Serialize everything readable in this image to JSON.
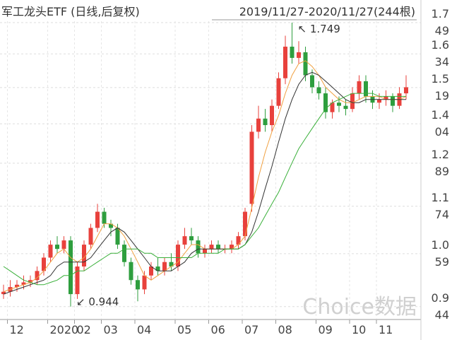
{
  "chart_data": {
    "type": "candlestick",
    "title": "军工龙头ETF (日线,后复权)",
    "subtitle": "2019/11/27-2020/11/27(244根)",
    "watermark": "Choice数据",
    "high_label": "↖ 1.749",
    "low_label": "↙ 0.944",
    "up_color": "#e8413c",
    "down_color": "#2e9e3e",
    "log_scale": true,
    "grid": true,
    "ylim": [
      0.918,
      1.837
    ],
    "yticks": [
      0.944,
      1.059,
      1.174,
      1.289,
      1.404,
      1.519,
      1.634,
      1.749
    ],
    "categories": [
      null,
      "12",
      null,
      null,
      null,
      null,
      null,
      "2020",
      null,
      null,
      null,
      "02",
      null,
      null,
      null,
      "03",
      null,
      null,
      null,
      null,
      "04",
      null,
      null,
      null,
      null,
      null,
      "05",
      null,
      null,
      null,
      null,
      "06",
      null,
      null,
      null,
      null,
      "07",
      null,
      null,
      null,
      null,
      "08",
      null,
      null,
      null,
      null,
      null,
      "09",
      null,
      null,
      null,
      null,
      "10",
      null,
      null,
      null,
      "11",
      null,
      null,
      null,
      null
    ],
    "open": [
      0.97,
      0.975,
      0.985,
      0.99,
      0.995,
      1.0,
      1.02,
      1.05,
      1.08,
      1.07,
      1.09,
      0.97,
      1.03,
      1.08,
      1.12,
      1.16,
      1.13,
      1.12,
      1.08,
      1.04,
      1.0,
      0.98,
      1.01,
      1.03,
      1.02,
      1.04,
      1.03,
      1.08,
      1.1,
      1.09,
      1.06,
      1.07,
      1.08,
      1.07,
      1.07,
      1.08,
      1.1,
      1.18,
      1.38,
      1.42,
      1.4,
      1.46,
      1.55,
      1.66,
      1.62,
      1.64,
      1.56,
      1.52,
      1.5,
      1.44,
      1.47,
      1.46,
      1.45,
      1.5,
      1.54,
      1.49,
      1.47,
      1.48,
      1.49,
      1.46,
      1.5
    ],
    "high": [
      0.99,
      1.0,
      1.0,
      1.01,
      1.01,
      1.03,
      1.06,
      1.09,
      1.1,
      1.1,
      1.1,
      1.04,
      1.09,
      1.13,
      1.18,
      1.17,
      1.14,
      1.13,
      1.09,
      1.05,
      1.01,
      1.02,
      1.04,
      1.05,
      1.05,
      1.06,
      1.09,
      1.12,
      1.12,
      1.1,
      1.08,
      1.09,
      1.09,
      1.08,
      1.09,
      1.11,
      1.17,
      1.4,
      1.46,
      1.45,
      1.48,
      1.57,
      1.7,
      1.749,
      1.68,
      1.66,
      1.58,
      1.54,
      1.52,
      1.48,
      1.49,
      1.48,
      1.52,
      1.56,
      1.56,
      1.51,
      1.5,
      1.51,
      1.5,
      1.52,
      1.56
    ],
    "low": [
      0.96,
      0.965,
      0.975,
      0.98,
      0.985,
      0.99,
      1.01,
      1.04,
      1.06,
      1.06,
      0.944,
      0.96,
      1.02,
      1.07,
      1.11,
      1.12,
      1.1,
      1.07,
      1.03,
      0.99,
      0.955,
      0.97,
      1.0,
      1.01,
      1.01,
      1.02,
      1.02,
      1.07,
      1.08,
      1.05,
      1.05,
      1.06,
      1.06,
      1.06,
      1.06,
      1.07,
      1.09,
      1.16,
      1.36,
      1.38,
      1.38,
      1.45,
      1.53,
      1.6,
      1.6,
      1.54,
      1.5,
      1.48,
      1.42,
      1.42,
      1.44,
      1.43,
      1.44,
      1.48,
      1.47,
      1.45,
      1.45,
      1.46,
      1.44,
      1.45,
      1.48
    ],
    "close": [
      0.975,
      0.985,
      0.99,
      0.995,
      1.0,
      1.02,
      1.05,
      1.08,
      1.07,
      1.09,
      0.97,
      1.03,
      1.08,
      1.12,
      1.16,
      1.13,
      1.12,
      1.08,
      1.04,
      1.0,
      0.98,
      1.01,
      1.03,
      1.02,
      1.04,
      1.03,
      1.08,
      1.1,
      1.09,
      1.06,
      1.07,
      1.08,
      1.07,
      1.07,
      1.08,
      1.1,
      1.16,
      1.38,
      1.42,
      1.4,
      1.46,
      1.55,
      1.66,
      1.62,
      1.64,
      1.56,
      1.52,
      1.5,
      1.44,
      1.47,
      1.46,
      1.45,
      1.5,
      1.54,
      1.49,
      1.47,
      1.48,
      1.49,
      1.46,
      1.5,
      1.52
    ],
    "series": [
      {
        "color": "#f0a040",
        "values": [
          0.975,
          0.98,
          0.985,
          0.99,
          0.995,
          1.005,
          1.02,
          1.04,
          1.06,
          1.07,
          1.05,
          1.04,
          1.05,
          1.07,
          1.1,
          1.13,
          1.13,
          1.12,
          1.1,
          1.07,
          1.04,
          1.01,
          1.0,
          1.01,
          1.02,
          1.03,
          1.04,
          1.06,
          1.08,
          1.08,
          1.07,
          1.07,
          1.07,
          1.07,
          1.07,
          1.08,
          1.1,
          1.17,
          1.25,
          1.32,
          1.38,
          1.43,
          1.5,
          1.56,
          1.6,
          1.61,
          1.59,
          1.56,
          1.52,
          1.5,
          1.48,
          1.47,
          1.47,
          1.48,
          1.49,
          1.49,
          1.49,
          1.48,
          1.48,
          1.48,
          1.49
        ]
      },
      {
        "color": "#333333",
        "values": [
          0.97,
          0.975,
          0.98,
          0.985,
          0.99,
          0.995,
          1.0,
          1.01,
          1.03,
          1.04,
          1.04,
          1.04,
          1.04,
          1.05,
          1.07,
          1.09,
          1.11,
          1.12,
          1.11,
          1.09,
          1.07,
          1.05,
          1.03,
          1.02,
          1.02,
          1.02,
          1.03,
          1.04,
          1.06,
          1.07,
          1.07,
          1.07,
          1.07,
          1.07,
          1.07,
          1.07,
          1.08,
          1.11,
          1.16,
          1.22,
          1.28,
          1.35,
          1.42,
          1.48,
          1.53,
          1.56,
          1.57,
          1.56,
          1.54,
          1.52,
          1.5,
          1.48,
          1.47,
          1.47,
          1.48,
          1.48,
          1.48,
          1.48,
          1.48,
          1.48,
          1.48
        ]
      },
      {
        "color": "#3ab03a",
        "values": [
          1.03,
          1.02,
          1.01,
          1.0,
          0.995,
          0.99,
          0.99,
          0.995,
          1.0,
          1.01,
          1.01,
          1.02,
          1.02,
          1.03,
          1.04,
          1.05,
          1.06,
          1.06,
          1.07,
          1.07,
          1.07,
          1.06,
          1.06,
          1.05,
          1.05,
          1.05,
          1.05,
          1.05,
          1.05,
          1.06,
          1.06,
          1.06,
          1.06,
          1.07,
          1.07,
          1.07,
          1.08,
          1.1,
          1.12,
          1.15,
          1.18,
          1.21,
          1.25,
          1.29,
          1.33,
          1.36,
          1.39,
          1.42,
          1.45,
          1.47,
          1.48,
          1.49,
          1.5,
          1.5,
          1.5,
          1.5,
          1.49,
          1.49,
          1.49,
          1.49,
          1.49
        ]
      }
    ]
  }
}
